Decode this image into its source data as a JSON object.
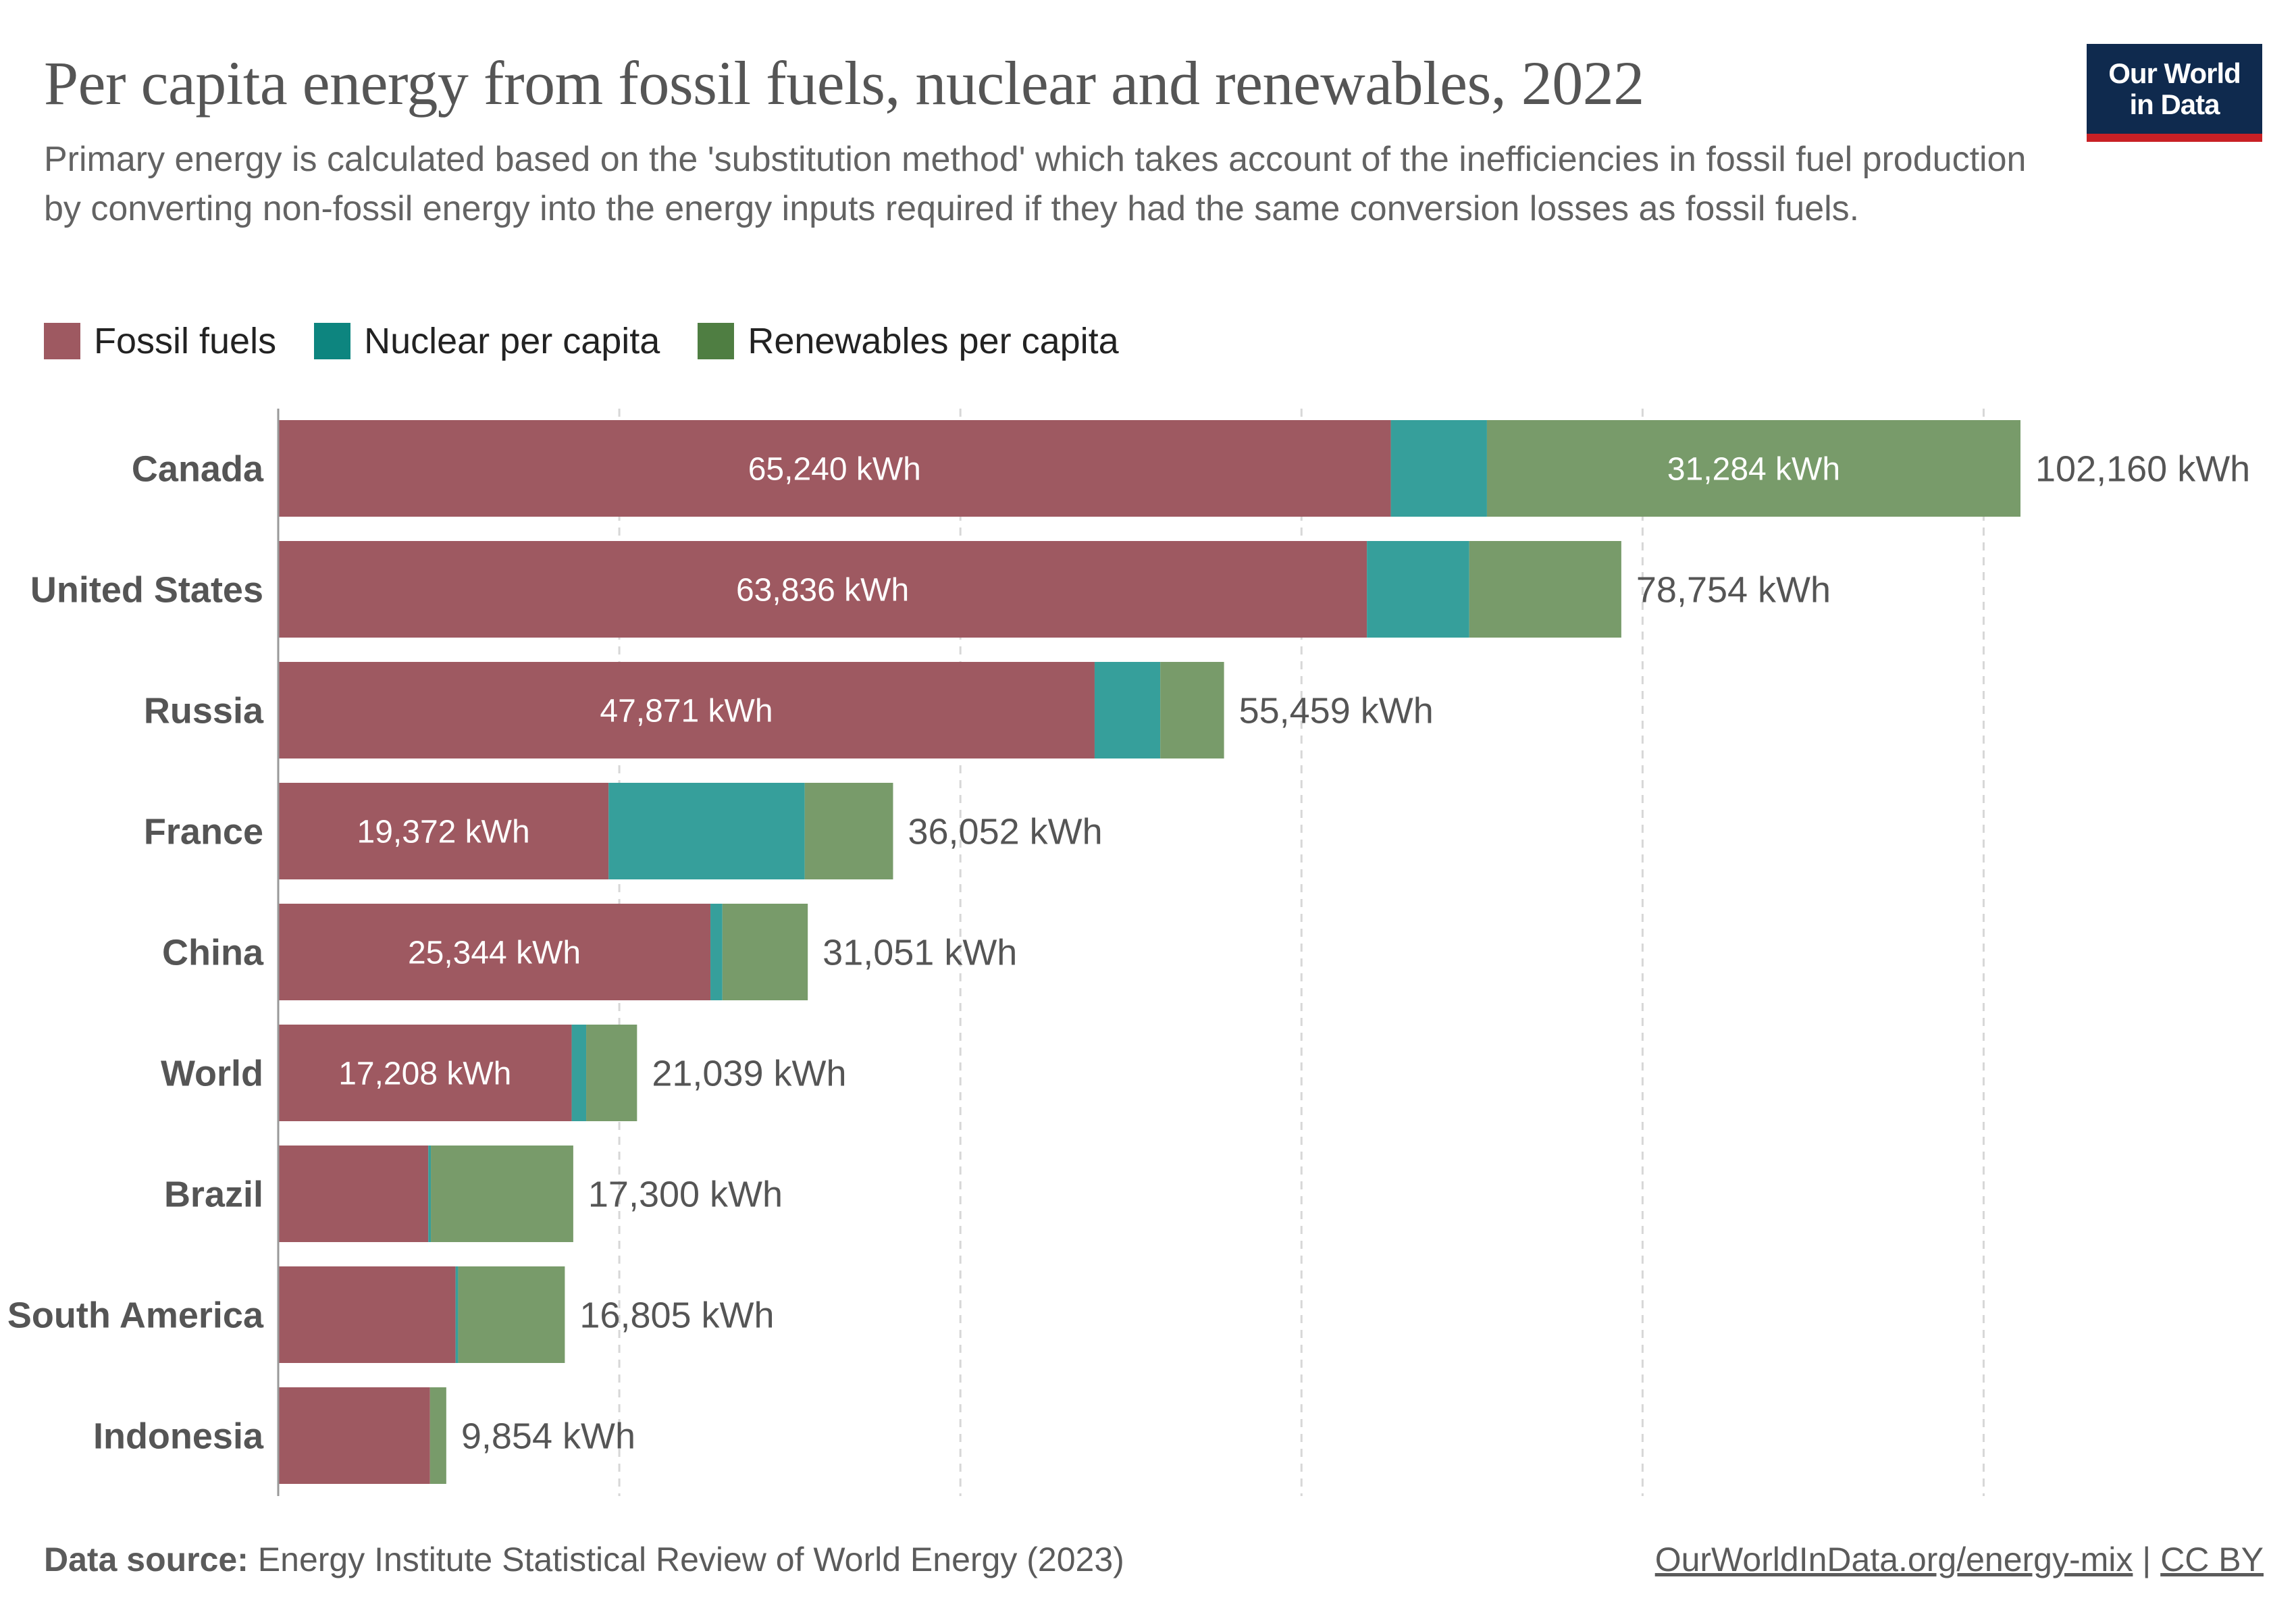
{
  "header": {
    "title": "Per capita energy from fossil fuels, nuclear and renewables, 2022",
    "subtitle": "Primary energy is calculated based on the 'substitution method' which takes account of the inefficiencies in fossil fuel production by converting non-fossil energy into the energy inputs required if they had the same conversion losses as fossil fuels.",
    "logo_line1": "Our World",
    "logo_line2": "in Data"
  },
  "legend": [
    {
      "label": "Fossil fuels",
      "color": "#9e5961"
    },
    {
      "label": "Nuclear per capita",
      "color": "#369f9b"
    },
    {
      "label": "Renewables per capita",
      "color": "#789b6a"
    }
  ],
  "chart_data": {
    "type": "bar",
    "orientation": "horizontal",
    "stacked": true,
    "unit": "kWh",
    "categories": [
      "Canada",
      "United States",
      "Russia",
      "France",
      "China",
      "World",
      "Brazil",
      "South America",
      "Indonesia"
    ],
    "series": [
      {
        "name": "Fossil fuels",
        "color": "#9e5961",
        "values": [
          65240,
          63836,
          47871,
          19372,
          25344,
          17208,
          8800,
          10400,
          8900
        ]
      },
      {
        "name": "Nuclear per capita",
        "color": "#369f9b",
        "values": [
          5636,
          6000,
          3850,
          11500,
          700,
          850,
          150,
          150,
          0
        ]
      },
      {
        "name": "Renewables per capita",
        "color": "#789b6a",
        "values": [
          31284,
          8918,
          3738,
          5180,
          5007,
          2981,
          8350,
          6255,
          954
        ]
      }
    ],
    "data_labels": [
      [
        "65,240 kWh",
        "",
        "31,284 kWh"
      ],
      [
        "63,836 kWh",
        "",
        ""
      ],
      [
        "47,871 kWh",
        "",
        ""
      ],
      [
        "19,372 kWh",
        "",
        ""
      ],
      [
        "25,344 kWh",
        "",
        ""
      ],
      [
        "17,208 kWh",
        "",
        ""
      ],
      [
        "",
        "",
        ""
      ],
      [
        "",
        "",
        ""
      ],
      [
        "",
        "",
        ""
      ]
    ],
    "total_labels": [
      "102,160 kWh",
      "78,754 kWh",
      "55,459 kWh",
      "36,052 kWh",
      "31,051 kWh",
      "21,039 kWh",
      "17,300 kWh",
      "16,805 kWh",
      "9,854 kWh"
    ],
    "xlim": [
      0,
      102160
    ],
    "gridlines": [
      20000,
      40000,
      60000,
      80000,
      100000
    ],
    "grid": true,
    "legend_position": "top-left"
  },
  "footer": {
    "source_label": "Data source:",
    "source_text": "Energy Institute Statistical Review of World Energy (2023)",
    "link": "OurWorldInData.org/energy-mix",
    "separator": "|",
    "license": "CC BY"
  }
}
